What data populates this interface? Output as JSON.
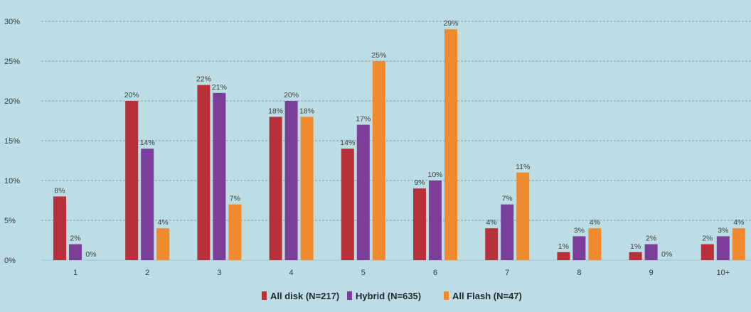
{
  "chart_data": {
    "type": "bar",
    "title": "",
    "xlabel": "",
    "ylabel": "",
    "categories": [
      "1",
      "2",
      "3",
      "4",
      "5",
      "6",
      "7",
      "8",
      "9",
      "10+"
    ],
    "series": [
      {
        "name": "All disk (N=217)",
        "color": "#b8313a",
        "values": [
          8,
          20,
          22,
          18,
          14,
          9,
          4,
          1,
          1,
          2
        ]
      },
      {
        "name": "Hybrid (N=635)",
        "color": "#7b3f9a",
        "values": [
          2,
          14,
          21,
          20,
          17,
          10,
          7,
          3,
          2,
          3
        ]
      },
      {
        "name": "All Flash (N=47)",
        "color": "#ef8a2f",
        "values": [
          0,
          4,
          7,
          18,
          25,
          29,
          11,
          4,
          0,
          4
        ]
      }
    ],
    "ylim": [
      0,
      30
    ],
    "yticks": [
      "0%",
      "5%",
      "10%",
      "15%",
      "20%",
      "25%",
      "30%"
    ],
    "value_suffix": "%",
    "grid": true,
    "legend": "bottom-center"
  }
}
